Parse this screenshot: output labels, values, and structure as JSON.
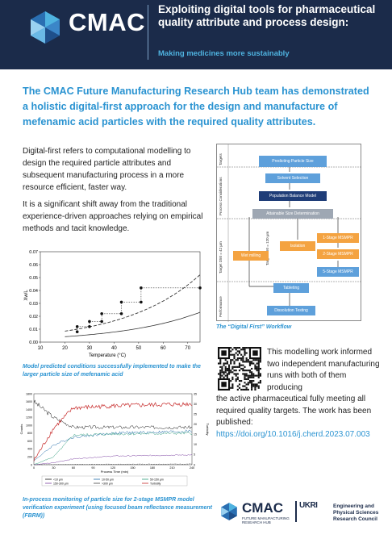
{
  "header": {
    "logo": "CMAC",
    "title": "Exploiting digital tools for pharmaceutical quality attribute and process design:",
    "subtitle": "Making medicines more sustainably"
  },
  "lead": "The CMAC Future Manufacturing Research Hub team has demonstrated a holistic digital-first approach for the design and manufacture of mefenamic acid particles with the required quality attributes.",
  "body": {
    "p1": "Digital-first refers to computational modelling to design the required particle attributes and subsequent manufacturing process in a more resource efficient, faster way.",
    "p2": "It is a significant shift away from the traditional experience-driven approaches relying on empirical methods and tacit knowledge."
  },
  "workflow": {
    "caption": "The “Digital First” Workflow",
    "side_labels": [
      "Targets",
      "Process Considerations",
      "Target D50 = 42 μm",
      "Target D50 = 120 μm",
      "Performance"
    ],
    "boxes": [
      "Predicting Particle Size",
      "Solvent Selection",
      "Population Balance Model",
      "Attainable Size Determination",
      "1-Stage MSMPR",
      "Wet milling",
      "Isolation",
      "2-Stage MSMPR",
      "5-Stage MSMPR",
      "Tableting",
      "Dissolution Testing"
    ]
  },
  "chart1": {
    "caption": "Model predicted conditions successfully implemented to make the larger particle size of mefenamic acid",
    "xlabel": "Temperature (°C)",
    "ylabel": "Xw/L",
    "x_ticks": [
      "10",
      "20",
      "30",
      "40",
      "50",
      "60",
      "70"
    ],
    "y_ticks": [
      "0.00",
      "0.01",
      "0.02",
      "0.03",
      "0.04",
      "0.05",
      "0.06",
      "0.07"
    ]
  },
  "chart2": {
    "caption": "In-process monitoring of particle size for 2-stage MSMPR model verification experiment (using focused beam reflectance measurement (FBRM))",
    "xlabel": "Process Time (min)",
    "ylabel_left": "Counts",
    "ylabel_right": "Turbidity",
    "x_ticks": [
      "0",
      "30",
      "60",
      "90",
      "120",
      "150",
      "180",
      "210",
      "240"
    ],
    "y_ticks_left": [
      "0",
      "200",
      "400",
      "600",
      "800",
      "1000",
      "1200",
      "1400",
      "1600",
      "1800"
    ],
    "y_ticks_right": [
      "0",
      "5",
      "10",
      "15",
      "20",
      "25",
      "30",
      "35"
    ],
    "legend": [
      "<10 μm",
      "10-50 μm",
      "50-150 μm",
      "150-300 μm",
      ">300 μm",
      "Turbidity"
    ]
  },
  "publication": {
    "text_a": "This modelling work informed two independent manufacturing runs with both of them producing",
    "text_b": "the active pharmaceutical fully meeting all required quality targets. The work has been published:",
    "link": "https://doi.org/10.1016/j.cherd.2023.07.003"
  },
  "footer": {
    "cmac": "CMAC",
    "cmac_small": "FUTURE MANUFACTURING RESEARCH HUB",
    "ukri": "UKRI",
    "epsrc": "Engineering and Physical Sciences Research Council"
  },
  "chart_data": [
    {
      "type": "scatter",
      "title": "",
      "xlabel": "Temperature (°C)",
      "ylabel": "Xw/L",
      "xlim": [
        10,
        75
      ],
      "ylim": [
        0,
        0.07
      ],
      "series": [
        {
          "values": [
            [
              25,
              0.008
            ],
            [
              25,
              0.012
            ],
            [
              30,
              0.012
            ],
            [
              30,
              0.016
            ],
            [
              35,
              0.016
            ],
            [
              35,
              0.022
            ],
            [
              43,
              0.022
            ],
            [
              43,
              0.031
            ],
            [
              51,
              0.031
            ],
            [
              51,
              0.042
            ],
            [
              75,
              0.042
            ]
          ]
        }
      ]
    },
    {
      "type": "line",
      "title": "",
      "xlabel": "Process Time (min)",
      "ylabel": "Counts",
      "xlim": [
        0,
        240
      ],
      "ylim": [
        0,
        1800
      ],
      "series": [
        {
          "name": "<10 μm",
          "values": [
            [
              0,
              1600
            ],
            [
              30,
              1200
            ],
            [
              60,
              950
            ],
            [
              120,
              950
            ],
            [
              240,
              950
            ]
          ]
        },
        {
          "name": "10-50 μm",
          "values": [
            [
              0,
              100
            ],
            [
              30,
              500
            ],
            [
              60,
              700
            ],
            [
              120,
              800
            ],
            [
              240,
              850
            ]
          ]
        },
        {
          "name": "50-150 μm",
          "values": [
            [
              0,
              0
            ],
            [
              30,
              200
            ],
            [
              60,
              750
            ],
            [
              120,
              780
            ],
            [
              240,
              800
            ]
          ]
        },
        {
          "name": "150-300 μm",
          "values": [
            [
              0,
              0
            ],
            [
              30,
              50
            ],
            [
              60,
              150
            ],
            [
              120,
              220
            ],
            [
              240,
              250
            ]
          ]
        },
        {
          "name": ">300 μm",
          "values": [
            [
              0,
              0
            ],
            [
              60,
              10
            ],
            [
              240,
              20
            ]
          ]
        },
        {
          "name": "Turbidity",
          "values": [
            [
              0,
              2
            ],
            [
              30,
              18
            ],
            [
              60,
              28
            ],
            [
              120,
              29
            ],
            [
              240,
              30
            ]
          ]
        }
      ]
    }
  ],
  "colors": {
    "navy": "#1b2b4a",
    "accent": "#2a93d1",
    "box_blue": "#5ea0db",
    "box_orange": "#f4a341",
    "box_navy": "#1f3d78"
  }
}
